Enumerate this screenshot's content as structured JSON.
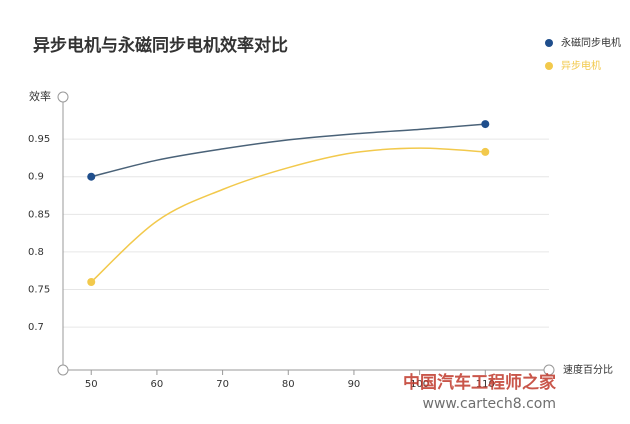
{
  "chart_data": {
    "type": "line",
    "title": "异步电机与永磁同步电机效率对比",
    "y_label": "效率",
    "x_label": "速度百分比",
    "x": [
      50,
      60,
      70,
      80,
      90,
      100,
      110
    ],
    "series": [
      {
        "name": "永磁同步电机",
        "color": "#1f4e8c",
        "line_color": "#4a6278",
        "values": [
          0.9,
          0.922,
          0.937,
          0.949,
          0.957,
          0.963,
          0.97
        ]
      },
      {
        "name": "异步电机",
        "color": "#f2c94c",
        "values": [
          0.76,
          0.841,
          0.883,
          0.912,
          0.932,
          0.938,
          0.933
        ]
      }
    ],
    "xlim": [
      45.7,
      119.7
    ],
    "xticks": [
      50,
      60,
      70,
      80,
      90,
      100,
      110
    ],
    "ylim": [
      0.643,
      1.006
    ],
    "yticks": [
      0.7,
      0.75,
      0.8,
      0.85,
      0.9,
      0.95
    ],
    "grid": true,
    "watermark": "中国汽车工程师之家",
    "watermark_url": "www.cartech8.com"
  }
}
